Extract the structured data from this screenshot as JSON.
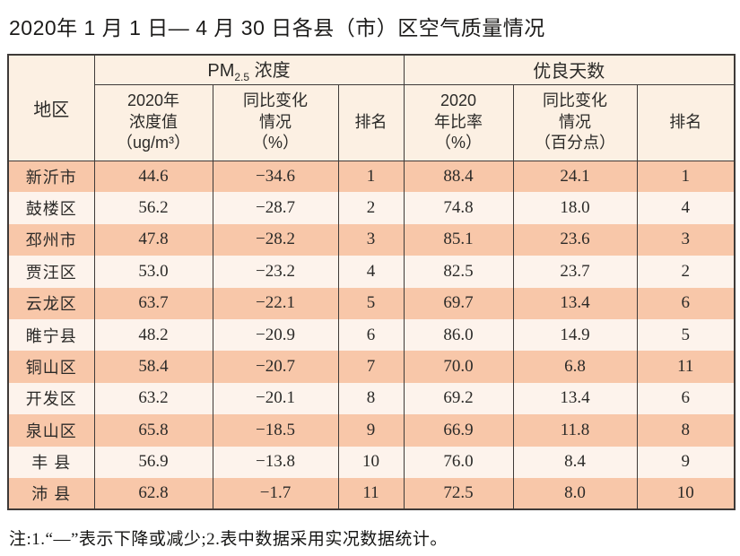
{
  "title": "2020年 1 月 1 日— 4 月 30 日各县（市）区空气质量情况",
  "colors": {
    "row_salmon": "#f8c7a9",
    "row_light": "#fdf3ec",
    "header_bg": "#fcf0e3",
    "border": "#3e3a38"
  },
  "table": {
    "header": {
      "region": "地区",
      "pm_group": {
        "prefix": "PM",
        "sub": "2.5",
        "suffix": " 浓度"
      },
      "days_group": "优良天数",
      "pm_value": "2020年\n浓度值\n（ug/m³）",
      "pm_change": "同比变化\n情况\n（%）",
      "pm_rank": "排名",
      "days_ratio": "2020\n年比率\n（%）",
      "days_change": "同比变化\n情况\n（百分点）",
      "days_rank": "排名"
    },
    "rows": [
      {
        "region": "新沂市",
        "pm_value": "44.6",
        "pm_change": "−34.6",
        "pm_rank": "1",
        "days_ratio": "88.4",
        "days_change": "24.1",
        "days_rank": "1"
      },
      {
        "region": "鼓楼区",
        "pm_value": "56.2",
        "pm_change": "−28.7",
        "pm_rank": "2",
        "days_ratio": "74.8",
        "days_change": "18.0",
        "days_rank": "4"
      },
      {
        "region": "邳州市",
        "pm_value": "47.8",
        "pm_change": "−28.2",
        "pm_rank": "3",
        "days_ratio": "85.1",
        "days_change": "23.6",
        "days_rank": "3"
      },
      {
        "region": "贾汪区",
        "pm_value": "53.0",
        "pm_change": "−23.2",
        "pm_rank": "4",
        "days_ratio": "82.5",
        "days_change": "23.7",
        "days_rank": "2"
      },
      {
        "region": "云龙区",
        "pm_value": "63.7",
        "pm_change": "−22.1",
        "pm_rank": "5",
        "days_ratio": "69.7",
        "days_change": "13.4",
        "days_rank": "6"
      },
      {
        "region": "睢宁县",
        "pm_value": "48.2",
        "pm_change": "−20.9",
        "pm_rank": "6",
        "days_ratio": "86.0",
        "days_change": "14.9",
        "days_rank": "5"
      },
      {
        "region": "铜山区",
        "pm_value": "58.4",
        "pm_change": "−20.7",
        "pm_rank": "7",
        "days_ratio": "70.0",
        "days_change": "6.8",
        "days_rank": "11"
      },
      {
        "region": "开发区",
        "pm_value": "63.2",
        "pm_change": "−20.1",
        "pm_rank": "8",
        "days_ratio": "69.2",
        "days_change": "13.4",
        "days_rank": "6"
      },
      {
        "region": "泉山区",
        "pm_value": "65.8",
        "pm_change": "−18.5",
        "pm_rank": "9",
        "days_ratio": "66.9",
        "days_change": "11.8",
        "days_rank": "8"
      },
      {
        "region": "丰 县",
        "pm_value": "56.9",
        "pm_change": "−13.8",
        "pm_rank": "10",
        "days_ratio": "76.0",
        "days_change": "8.4",
        "days_rank": "9"
      },
      {
        "region": "沛 县",
        "pm_value": "62.8",
        "pm_change": "−1.7",
        "pm_rank": "11",
        "days_ratio": "72.5",
        "days_change": "8.0",
        "days_rank": "10"
      }
    ]
  },
  "note": "注:1.“—”表示下降或减少;2.表中数据采用实况数据统计。"
}
